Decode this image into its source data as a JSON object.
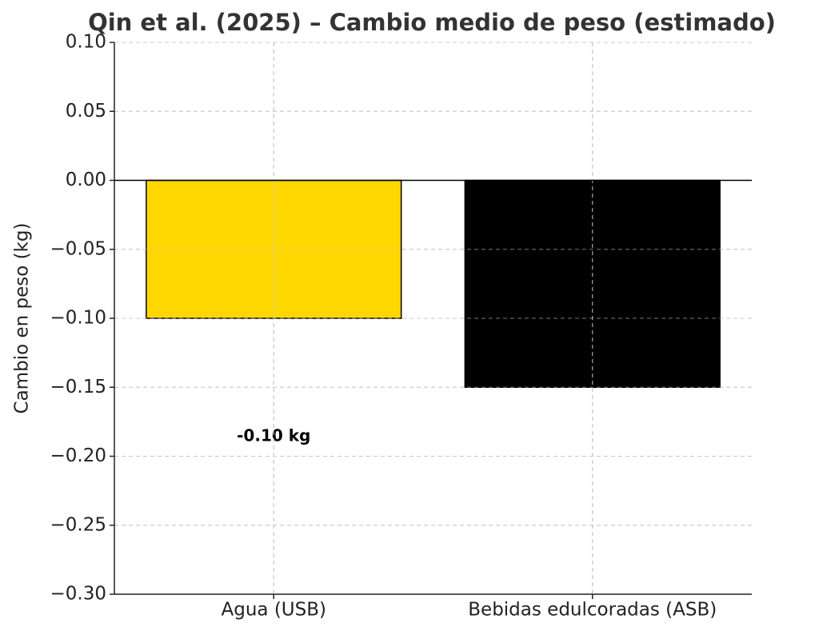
{
  "chart_data": {
    "type": "bar",
    "title": "Qin et al. (2025) – Cambio medio de peso (estimado)",
    "y_label": "Cambio en peso (kg)",
    "categories": [
      "Agua (USB)",
      "Bebidas edulcoradas (ASB)"
    ],
    "values": [
      -0.1,
      -0.15
    ],
    "value_labels": [
      "-0.10 kg",
      null
    ],
    "colors": [
      "#ffd700",
      "#000000"
    ],
    "ylim": [
      -0.3,
      0.1
    ],
    "yticks": [
      {
        "value": 0.1,
        "label": "0.10"
      },
      {
        "value": 0.05,
        "label": "0.05"
      },
      {
        "value": 0.0,
        "label": "0.00"
      },
      {
        "value": -0.05,
        "label": "−0.05"
      },
      {
        "value": -0.1,
        "label": "−0.10"
      },
      {
        "value": -0.15,
        "label": "−0.15"
      },
      {
        "value": -0.2,
        "label": "−0.20"
      },
      {
        "value": -0.25,
        "label": "−0.25"
      },
      {
        "value": -0.3,
        "label": "−0.30"
      }
    ],
    "grid": true
  }
}
